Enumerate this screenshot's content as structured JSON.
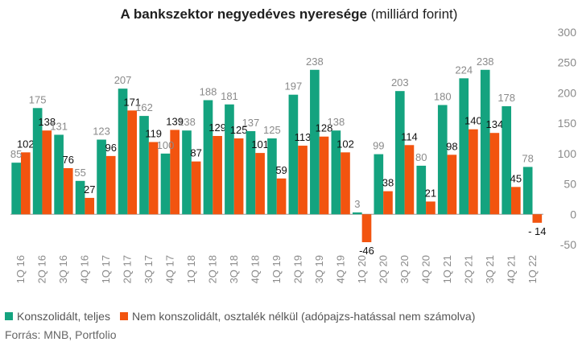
{
  "title_main": "A bankszektor negyedéves nyeresége",
  "title_sub": "(milliárd forint)",
  "source": "Forrás: MNB, Portfolio",
  "colors": {
    "series1": "#14a37f",
    "series2": "#f2540f",
    "axis_text": "#8a8a8a",
    "grid": "#dddddd"
  },
  "chart_data": {
    "type": "bar",
    "categories": [
      "1Q 16",
      "2Q 16",
      "3Q 16",
      "4Q 16",
      "1Q 17",
      "2Q 17",
      "3Q 17",
      "4Q 17",
      "1Q 18",
      "2Q 18",
      "3Q 18",
      "4Q 18",
      "1Q 19",
      "2Q 19",
      "3Q 19",
      "4Q 19",
      "1Q 20",
      "2Q 20",
      "3Q 20",
      "4Q 20",
      "1Q 21",
      "2Q 21",
      "3Q 21",
      "4Q 21",
      "1Q 22"
    ],
    "series": [
      {
        "name": "Konszolidált, teljes",
        "values": [
          85,
          175,
          131,
          55,
          123,
          207,
          162,
          100,
          138,
          188,
          181,
          137,
          125,
          197,
          238,
          138,
          3,
          99,
          203,
          80,
          180,
          224,
          238,
          178,
          78
        ]
      },
      {
        "name": "Nem konszolidált, osztalék nélkül (adópajzs-hatással nem számolva)",
        "values": [
          102,
          138,
          76,
          27,
          96,
          171,
          119,
          139,
          87,
          129,
          125,
          101,
          59,
          113,
          128,
          102,
          -46,
          38,
          114,
          21,
          98,
          140,
          134,
          45,
          -14
        ]
      }
    ],
    "data_labels_series2": [
      "102",
      "138",
      "76",
      "27",
      "96",
      "171",
      "119",
      "139",
      "87",
      "129",
      "125",
      "101",
      "59",
      "113",
      "128",
      "102",
      "-46",
      "38",
      "114",
      "21",
      "98",
      "140",
      "134",
      "45",
      "- 14"
    ],
    "ylim": [
      -50,
      300
    ],
    "yticks": [
      -50,
      0,
      50,
      100,
      150,
      200,
      250,
      300
    ],
    "grid": false,
    "legend_position": "bottom-left"
  }
}
